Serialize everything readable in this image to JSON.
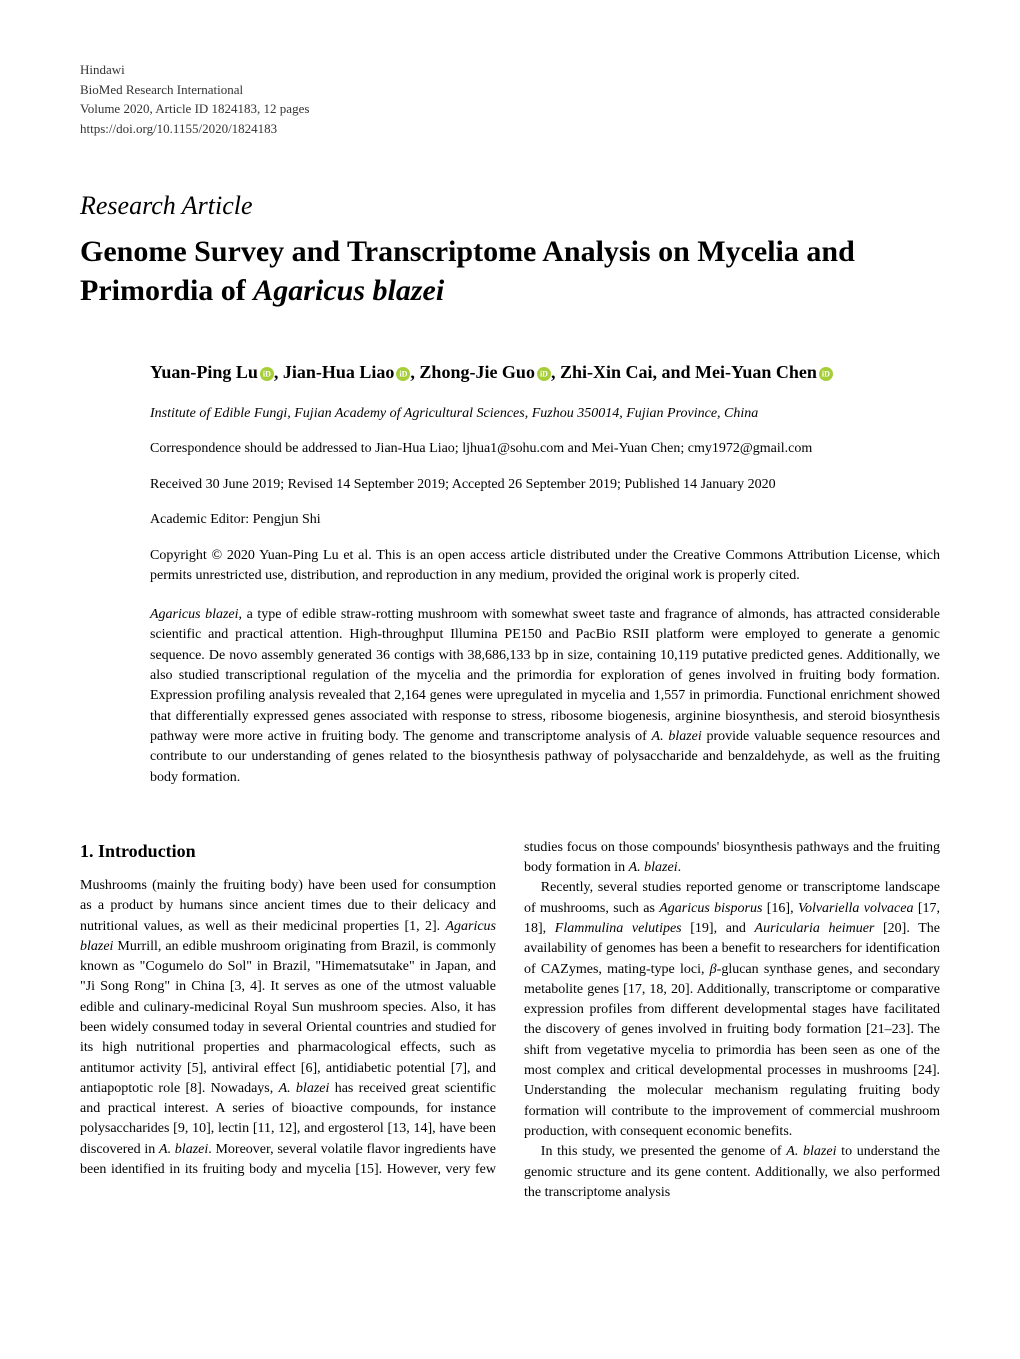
{
  "journal": {
    "publisher": "Hindawi",
    "name": "BioMed Research International",
    "volume_line": "Volume 2020, Article ID 1824183, 12 pages",
    "doi": "https://doi.org/10.1155/2020/1824183"
  },
  "article": {
    "type": "Research Article",
    "title_part1": "Genome Survey and Transcriptome Analysis on Mycelia and Primordia of ",
    "title_italic": "Agaricus blazei"
  },
  "authors": {
    "a1_name": "Yuan-Ping Lu",
    "sep1": ", ",
    "a2_name": "Jian-Hua Liao",
    "sep2": ", ",
    "a3_name": "Zhong-Jie Guo",
    "sep3": ", ",
    "a4_name": "Zhi-Xin Cai, and ",
    "a5_name": "Mei-Yuan Chen"
  },
  "affiliation": "Institute of Edible Fungi, Fujian Academy of Agricultural Sciences, Fuzhou 350014, Fujian Province, China",
  "correspondence": "Correspondence should be addressed to Jian-Hua Liao; ljhua1@sohu.com and Mei-Yuan Chen; cmy1972@gmail.com",
  "dates": "Received 30 June 2019; Revised 14 September 2019; Accepted 26 September 2019; Published 14 January 2020",
  "editor": "Academic Editor: Pengjun Shi",
  "copyright": "Copyright © 2020 Yuan-Ping Lu et al. This is an open access article distributed under the Creative Commons Attribution License, which permits unrestricted use, distribution, and reproduction in any medium, provided the original work is properly cited.",
  "abstract": {
    "s1": "Agaricus blazei",
    "s2": ", a type of edible straw-rotting mushroom with somewhat sweet taste and fragrance of almonds, has attracted considerable scientific and practical attention. High-throughput Illumina PE150 and PacBio RSII platform were employed to generate a genomic sequence. De novo assembly generated 36 contigs with 38,686,133 bp in size, containing 10,119 putative predicted genes. Additionally, we also studied transcriptional regulation of the mycelia and the primordia for exploration of genes involved in fruiting body formation. Expression profiling analysis revealed that 2,164 genes were upregulated in mycelia and 1,557 in primordia. Functional enrichment showed that differentially expressed genes associated with response to stress, ribosome biogenesis, arginine biosynthesis, and steroid biosynthesis pathway were more active in fruiting body. The genome and transcriptome analysis of ",
    "s3": "A. blazei",
    "s4": " provide valuable sequence resources and contribute to our understanding of genes related to the biosynthesis pathway of polysaccharide and benzaldehyde, as well as the fruiting body formation."
  },
  "section1": {
    "heading": "1. Introduction",
    "p1a": "Mushrooms (mainly the fruiting body) have been used for consumption as a product by humans since ancient times due to their delicacy and nutritional values, as well as their medicinal properties [1, 2]. ",
    "p1b": "Agaricus blazei",
    "p1c": " Murrill, an edible mushroom originating from Brazil, is commonly known as \"Cogumelo do Sol\" in Brazil, \"Himematsutake\" in Japan, and \"Ji Song Rong\" in China [3, 4]. It serves as one of the utmost valuable edible and culinary-medicinal Royal Sun mushroom species. Also, it has been widely consumed today in several Oriental countries and studied for its high nutritional properties and pharmacological effects, such as antitumor activity [5], antiviral effect [6], antidiabetic potential [7], and antiapoptotic role [8]. Nowadays, ",
    "p1d": "A. blazei",
    "p1e": " has received great scientific and practical interest. A series of bioactive compounds, for instance polysaccharides [9, 10], lectin [11, 12], and ergosterol [13, 14], have been discovered in ",
    "p1f": "A. blazei",
    "p1g": ". Moreover, several volatile flavor ingredients have been identified in its fruiting body and mycelia [15]. However, very few studies focus on those compounds' ",
    "p1h": "biosynthesis pathways and the fruiting body formation in ",
    "p1i": "A. blazei",
    "p1j": ".",
    "p2a": "Recently, several studies reported genome or transcriptome landscape of mushrooms, such as ",
    "p2b": "Agaricus bisporus",
    "p2c": " [16], ",
    "p2d": "Volvariella volvacea",
    "p2e": " [17, 18], ",
    "p2f": "Flammulina velutipes",
    "p2g": " [19], and ",
    "p2h": "Auricularia heimuer",
    "p2i": " [20]. The availability of genomes has been a benefit to researchers for identification of CAZymes, mating-type loci, ",
    "p2j": "β",
    "p2k": "-glucan synthase genes, and secondary metabolite genes [17, 18, 20]. Additionally, transcriptome or comparative expression profiles from different developmental stages have facilitated the discovery of genes involved in fruiting body formation [21–23]. The shift from vegetative mycelia to primordia has been seen as one of the most complex and critical developmental processes in mushrooms [24]. Understanding the molecular mechanism regulating fruiting body formation will contribute to the improvement of commercial mushroom production, with consequent economic benefits.",
    "p3a": "In this study, we presented the genome of ",
    "p3b": "A. blazei",
    "p3c": " to understand the genomic structure and its gene content. Additionally, we also performed the transcriptome analysis"
  }
}
